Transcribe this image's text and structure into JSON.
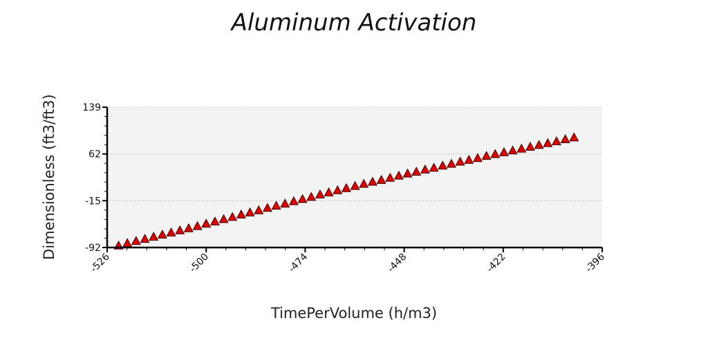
{
  "chart_data": {
    "type": "scatter",
    "title": "Aluminum Activation",
    "xlabel": "TimePerVolume (h/m3)",
    "ylabel": "Dimensionless (ft3/ft3)",
    "xlim": [
      -526,
      -396
    ],
    "ylim": [
      -92,
      139
    ],
    "x_ticks": [
      "-526",
      "-500",
      "-474",
      "-448",
      "-422",
      "-396"
    ],
    "y_ticks": [
      "-92",
      "-15",
      "62",
      "139"
    ],
    "grid": true,
    "marker": "triangle",
    "colors": {
      "marker_fill": "#e00000",
      "marker_stroke": "#3a0000",
      "plot_background": "#f3f3f3",
      "grid": "#bdbdbd"
    },
    "series": [
      {
        "x": [
          -523.0,
          -520.7,
          -518.4,
          -516.1,
          -513.8,
          -511.5,
          -509.2,
          -506.9,
          -504.6,
          -502.3,
          -500.0,
          -497.7,
          -495.4,
          -493.1,
          -490.8,
          -488.5,
          -486.2,
          -483.9,
          -481.6,
          -479.3,
          -477.0,
          -474.7,
          -472.4,
          -470.1,
          -467.8,
          -465.5,
          -463.2,
          -460.9,
          -458.6,
          -456.3,
          -454.0,
          -451.7,
          -449.4,
          -447.1,
          -444.8,
          -442.5,
          -440.2,
          -437.9,
          -435.6,
          -433.3,
          -431.0,
          -428.7,
          -426.4,
          -424.1,
          -421.8,
          -419.5,
          -417.2,
          -414.9,
          -412.6,
          -410.3,
          -408.0,
          -405.7,
          -403.4
        ],
        "y": [
          -89.0,
          -85.0,
          -81.5,
          -78.0,
          -74.5,
          -71.0,
          -67.5,
          -64.0,
          -60.5,
          -57.0,
          -53.0,
          -49.5,
          -45.5,
          -42.0,
          -38.0,
          -34.5,
          -31.0,
          -27.0,
          -23.5,
          -20.0,
          -16.0,
          -12.5,
          -9.0,
          -5.0,
          -1.5,
          2.0,
          5.5,
          9.0,
          12.5,
          16.0,
          19.0,
          22.5,
          26.0,
          29.5,
          32.5,
          36.0,
          39.0,
          42.5,
          45.5,
          49.0,
          52.0,
          55.0,
          58.5,
          61.5,
          64.5,
          67.5,
          70.5,
          73.5,
          76.5,
          79.5,
          82.5,
          86.0,
          89.0
        ]
      }
    ]
  }
}
